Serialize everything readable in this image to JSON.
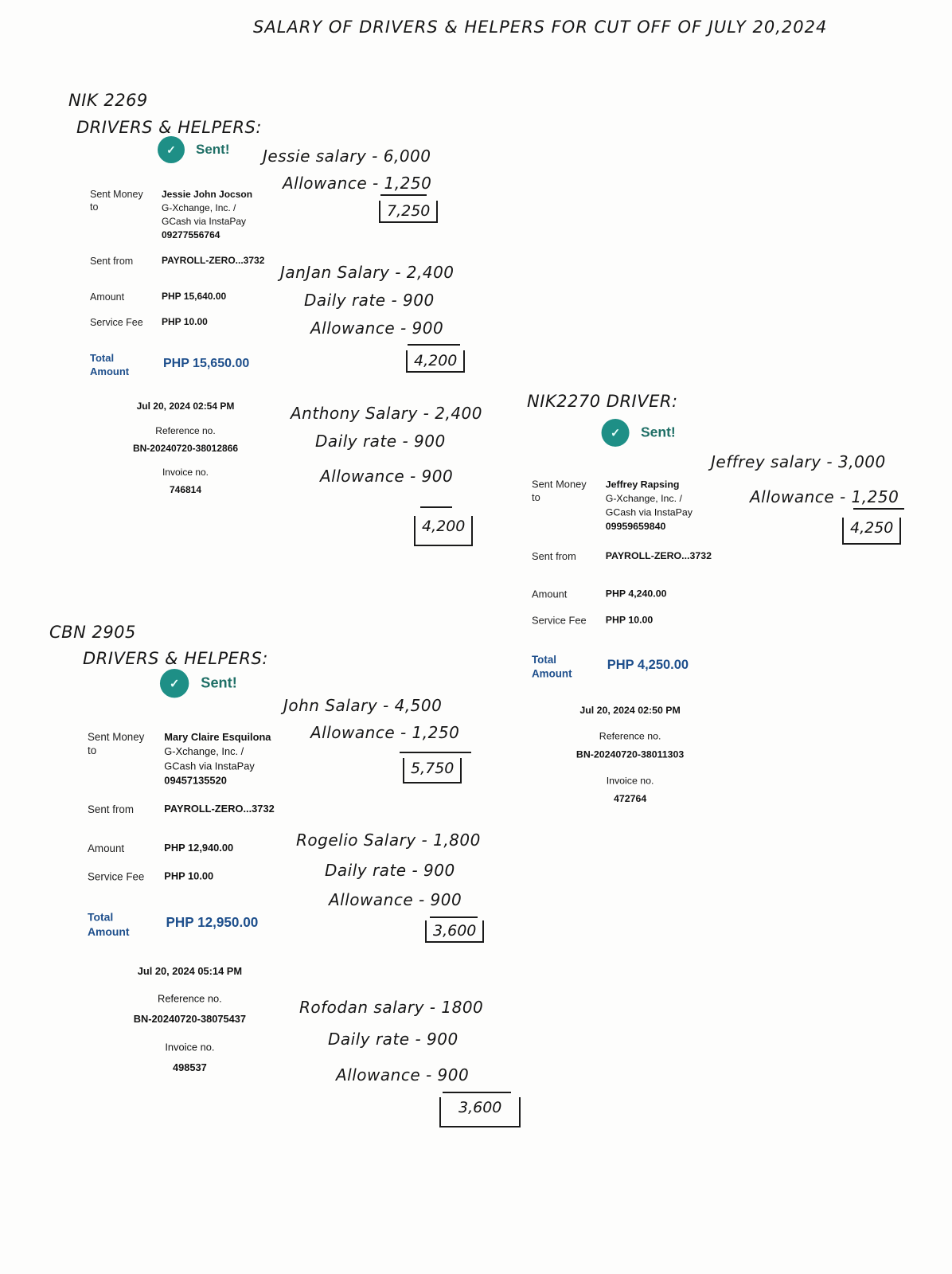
{
  "title": "SALARY OF DRIVERS & HELPERS FOR CUT OFF OF JULY 20,2024",
  "groups": [
    {
      "plate": "NIK 2269",
      "heading": "DRIVERS & HELPERS:"
    },
    {
      "plate_heading": "NIK2270 DRIVER:"
    },
    {
      "plate": "CBN 2905",
      "heading": "DRIVERS & HELPERS:"
    }
  ],
  "receipts": [
    {
      "status": "Sent!",
      "sent_money_label": "Sent Money to",
      "recipient": "Jessie John Jocson",
      "bank_line1": "G-Xchange, Inc. /",
      "bank_line2": "GCash via InstaPay",
      "account": "09277556764",
      "sent_from_label": "Sent from",
      "sent_from": "PAYROLL-ZERO...3732",
      "amount_label": "Amount",
      "amount": "PHP 15,640.00",
      "fee_label": "Service Fee",
      "fee": "PHP 10.00",
      "total_label": "Total Amount",
      "total": "PHP 15,650.00",
      "datetime": "Jul 20, 2024 02:54 PM",
      "reference_label": "Reference no.",
      "reference": "BN-20240720-38012866",
      "invoice_label": "Invoice no.",
      "invoice": "746814"
    },
    {
      "status": "Sent!",
      "sent_money_label": "Sent Money to",
      "recipient": "Jeffrey Rapsing",
      "bank_line1": "G-Xchange, Inc. /",
      "bank_line2": "GCash via InstaPay",
      "account": "09959659840",
      "sent_from_label": "Sent from",
      "sent_from": "PAYROLL-ZERO...3732",
      "amount_label": "Amount",
      "amount": "PHP 4,240.00",
      "fee_label": "Service Fee",
      "fee": "PHP 10.00",
      "total_label": "Total Amount",
      "total": "PHP 4,250.00",
      "datetime": "Jul 20, 2024 02:50 PM",
      "reference_label": "Reference no.",
      "reference": "BN-20240720-38011303",
      "invoice_label": "Invoice no.",
      "invoice": "472764"
    },
    {
      "status": "Sent!",
      "sent_money_label": "Sent Money to",
      "recipient": "Mary Claire Esquilona",
      "bank_line1": "G-Xchange, Inc. /",
      "bank_line2": "GCash via InstaPay",
      "account": "09457135520",
      "sent_from_label": "Sent from",
      "sent_from": "PAYROLL-ZERO...3732",
      "amount_label": "Amount",
      "amount": "PHP 12,940.00",
      "fee_label": "Service Fee",
      "fee": "PHP 10.00",
      "total_label": "Total Amount",
      "total": "PHP 12,950.00",
      "datetime": "Jul 20, 2024 05:14 PM",
      "reference_label": "Reference no.",
      "reference": "BN-20240720-38075437",
      "invoice_label": "Invoice no.",
      "invoice": "498537"
    }
  ],
  "notes": {
    "jessie": {
      "salary": "Jessie salary - 6,000",
      "allowance": "Allowance - 1,250",
      "total": "7,250"
    },
    "janjan": {
      "salary": "JanJan Salary - 2,400",
      "daily": "Daily rate - 900",
      "allowance": "Allowance - 900",
      "total": "4,200"
    },
    "anthony": {
      "salary": "Anthony Salary - 2,400",
      "daily": "Daily rate - 900",
      "allowance": "Allowance - 900",
      "total": "4,200"
    },
    "jeffrey": {
      "salary": "Jeffrey salary - 3,000",
      "allowance": "Allowance - 1,250",
      "total": "4,250"
    },
    "john": {
      "salary": "John Salary - 4,500",
      "allowance": "Allowance - 1,250",
      "total": "5,750"
    },
    "rogelio": {
      "salary": "Rogelio Salary - 1,800",
      "daily": "Daily rate - 900",
      "allowance": "Allowance - 900",
      "total": "3,600"
    },
    "rofodan": {
      "salary": "Rofodan salary - 1800",
      "daily": "Daily rate - 900",
      "allowance": "Allowance - 900",
      "total": "3,600"
    }
  },
  "colors": {
    "check": "#1e8f86",
    "sent_text": "#1f6f66",
    "total_blue": "#1e4f8c"
  }
}
